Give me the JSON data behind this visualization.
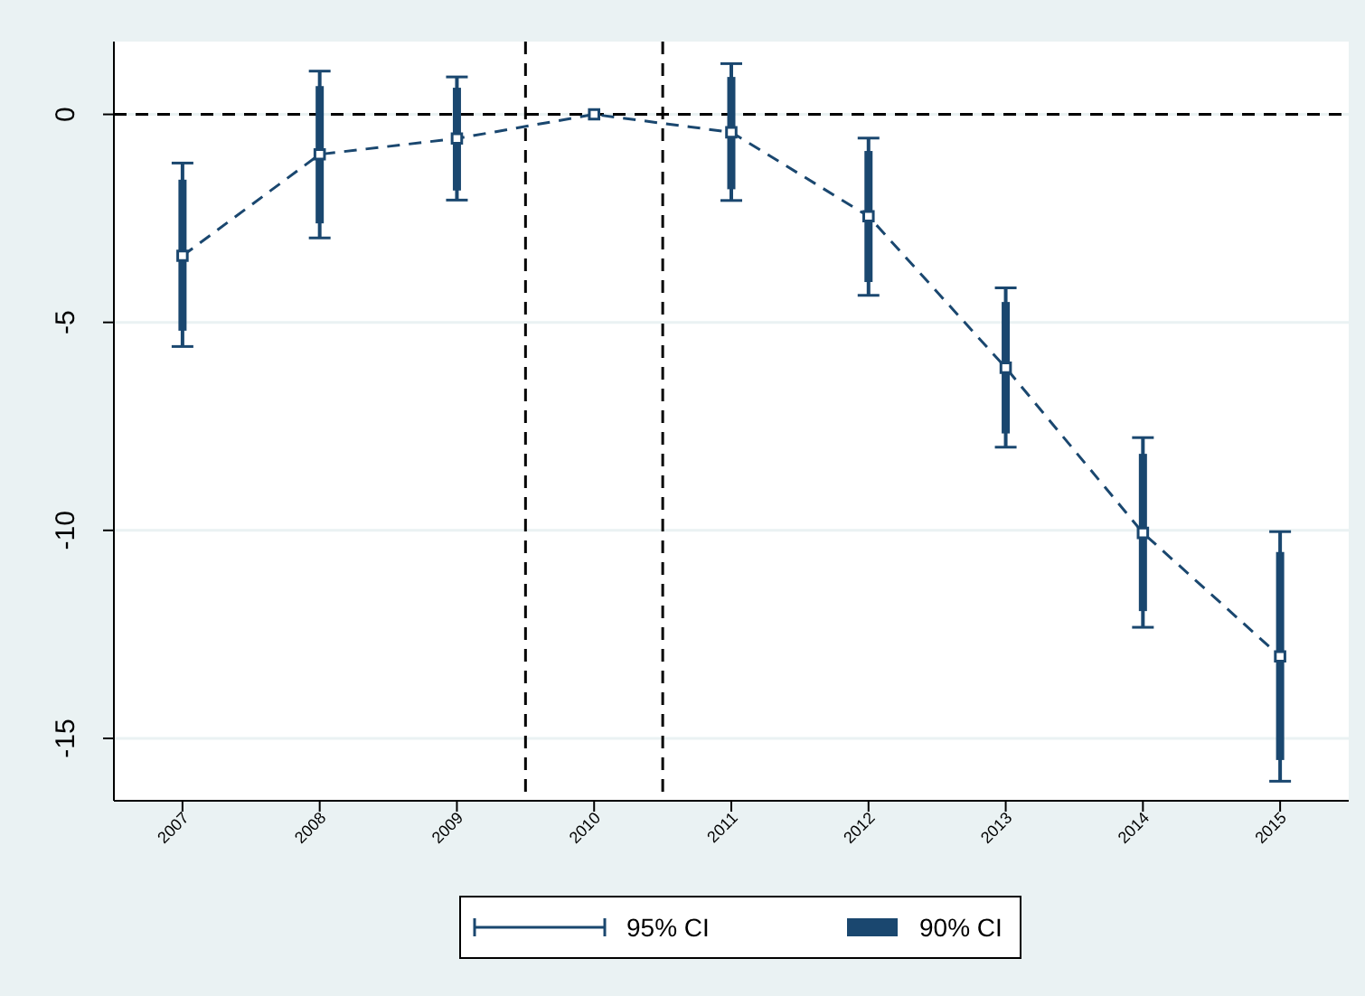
{
  "chart_data": {
    "type": "line",
    "x": [
      2007,
      2008,
      2009,
      2010,
      2011,
      2012,
      2013,
      2014,
      2015
    ],
    "xlim": [
      2006.5,
      2015.5
    ],
    "xticks": [
      2007,
      2008,
      2009,
      2010,
      2011,
      2012,
      2013,
      2014,
      2015
    ],
    "ylim": [
      -16.5,
      1.75
    ],
    "yticks": [
      0,
      -5,
      -10,
      -15
    ],
    "grid": "y",
    "legend": "bottom",
    "series": [
      {
        "name": "95% CI",
        "type": "scatter",
        "marker": "square",
        "color": "#1a476f",
        "values": [
          -3.4,
          -0.96,
          -0.58,
          0,
          -0.43,
          -2.45,
          -6.09,
          -10.06,
          -13.03
        ],
        "errors": [
          [
            -5.58,
            -1.17
          ],
          [
            -2.97,
            1.04
          ],
          [
            -2.06,
            0.9
          ],
          null,
          [
            -2.07,
            1.22
          ],
          [
            -4.35,
            -0.57
          ],
          [
            -8.0,
            -4.17
          ],
          [
            -12.33,
            -7.77
          ],
          [
            -16.03,
            -10.03
          ]
        ]
      },
      {
        "name": "90% CI",
        "type": "bar",
        "color": "#1a476f",
        "base": [
          -5.2,
          -2.62,
          -1.83,
          null,
          -1.8,
          -4.03,
          -7.67,
          -11.94,
          -15.52
        ],
        "values": [
          3.63,
          3.3,
          2.47,
          null,
          2.7,
          3.15,
          3.16,
          3.78,
          5.0
        ]
      },
      {
        "line_style": "dashed",
        "color": "#1a476f",
        "values": [
          -3.4,
          -0.96,
          -0.58,
          0,
          -0.43,
          -2.45,
          -6.09,
          -10.06,
          -13.03
        ]
      }
    ],
    "ref_lines": [
      {
        "axis": "y",
        "value": 0,
        "color": "#000000",
        "line_style": "dashed"
      },
      {
        "axis": "x",
        "value": 2009.5,
        "color": "#000000",
        "line_style": "dashed"
      },
      {
        "axis": "x",
        "value": 2010.5,
        "color": "#000000",
        "line_style": "dashed"
      }
    ]
  }
}
